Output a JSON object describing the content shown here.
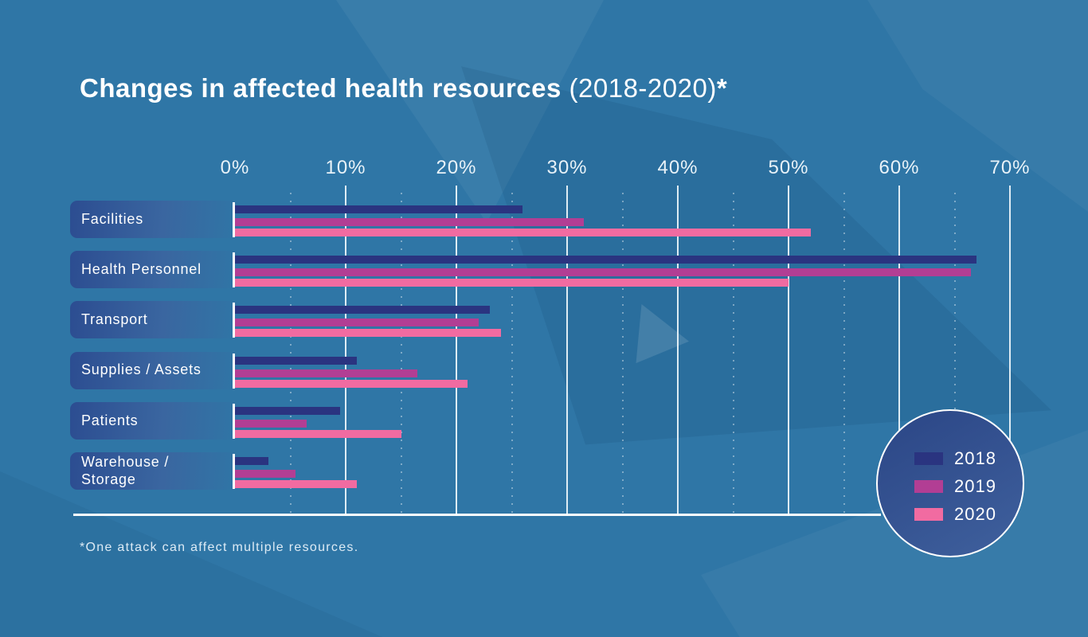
{
  "title": {
    "bold": "Changes in affected health resources",
    "normal": " (2018-2020)",
    "asterisk": "*"
  },
  "footnote": "*One attack can affect multiple resources.",
  "legend": {
    "position": "bottom-right-circle",
    "items": [
      {
        "label": "2018",
        "color": "#2a3480"
      },
      {
        "label": "2019",
        "color": "#b23e94"
      },
      {
        "label": "2020",
        "color": "#f16ba1"
      }
    ]
  },
  "chart_data": {
    "type": "bar",
    "orientation": "horizontal",
    "title": "Changes in affected health resources (2018-2020)*",
    "categories": [
      "Facilities",
      "Health Personnel",
      "Transport",
      "Supplies / Assets",
      "Patients",
      "Warehouse / Storage"
    ],
    "series": [
      {
        "name": "2018",
        "color": "#2a3480",
        "values": [
          26,
          67,
          23,
          11,
          9.5,
          3
        ]
      },
      {
        "name": "2019",
        "color": "#b23e94",
        "values": [
          31.5,
          66.5,
          22,
          16.5,
          6.5,
          5.5
        ]
      },
      {
        "name": "2020",
        "color": "#f16ba1",
        "values": [
          52,
          50,
          24,
          21,
          15,
          11
        ]
      }
    ],
    "x_ticks": [
      0,
      10,
      20,
      30,
      40,
      50,
      60,
      70
    ],
    "x_tick_suffix": "%",
    "xlim": [
      0,
      70
    ],
    "grid": "major-solid-every-10, minor-dotted-every-5",
    "footnote": "*One attack can affect multiple resources."
  },
  "colors": {
    "background": "#2f76a6",
    "title_text": "#ffffff",
    "tick_text": "#e8f2f8",
    "gridline": "#eef6fb",
    "bar_2018": "#2a3480",
    "bar_2019": "#b23e94",
    "bar_2020": "#f16ba1"
  }
}
